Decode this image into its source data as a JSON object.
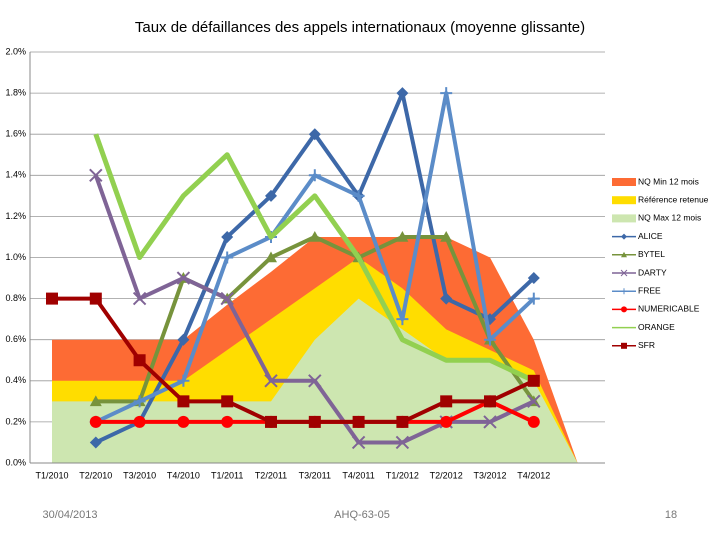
{
  "chart_data": {
    "type": "line",
    "title": "Taux de défaillances des appels internationaux (moyenne glissante)",
    "categories": [
      "T1/2010",
      "T2/2010",
      "T3/2010",
      "T4/2010",
      "T1/2011",
      "T2/2011",
      "T3/2011",
      "T4/2011",
      "T1/2012",
      "T2/2012",
      "T3/2012",
      "T4/2012",
      null
    ],
    "ylim": [
      0,
      2
    ],
    "yticks": [
      {
        "value": 0,
        "label": "0.0%"
      },
      {
        "value": 0.2,
        "label": "0.2%"
      },
      {
        "value": 0.4,
        "label": "0.4%"
      },
      {
        "value": 0.6,
        "label": "0.6%"
      },
      {
        "value": 0.8,
        "label": "0.8%"
      },
      {
        "value": 1.0,
        "label": "1.0%"
      },
      {
        "value": 1.2,
        "label": "1.2%"
      },
      {
        "value": 1.4,
        "label": "1.4%"
      },
      {
        "value": 1.6,
        "label": "1.6%"
      },
      {
        "value": 1.8,
        "label": "1.8%"
      },
      {
        "value": 2.0,
        "label": "2.0%"
      }
    ],
    "grid": true,
    "legend": "right",
    "series": [
      {
        "name": "NQ Min 12 mois",
        "type": "area",
        "color": "#fd6b34",
        "values": [
          0.6,
          0.6,
          0.6,
          0.6,
          0.77,
          0.93,
          1.1,
          1.1,
          1.1,
          1.1,
          1.0,
          0.6,
          0
        ]
      },
      {
        "name": "Référence retenue",
        "type": "area",
        "color": "#ffdd00",
        "values": [
          0.4,
          0.4,
          0.4,
          0.4,
          0.55,
          0.7,
          0.85,
          1.0,
          0.85,
          0.65,
          0.55,
          0.45,
          0
        ]
      },
      {
        "name": "NQ Max 12 mois",
        "type": "area",
        "color": "#cde6b0",
        "values": [
          0.3,
          0.3,
          0.3,
          0.3,
          0.3,
          0.3,
          0.6,
          0.8,
          0.65,
          0.5,
          0.5,
          0.4,
          0
        ]
      },
      {
        "name": "ALICE",
        "type": "line",
        "marker": "diamond",
        "color": "#3d68a8",
        "values": [
          null,
          0.1,
          0.2,
          0.6,
          1.1,
          1.3,
          1.6,
          1.3,
          1.8,
          0.8,
          0.7,
          0.9,
          null
        ]
      },
      {
        "name": "BYTEL",
        "type": "line",
        "marker": "triangle",
        "color": "#77933c",
        "values": [
          null,
          0.3,
          0.3,
          0.9,
          0.8,
          1.0,
          1.1,
          1.0,
          1.1,
          1.1,
          0.6,
          0.3,
          null
        ]
      },
      {
        "name": "DARTY",
        "type": "line",
        "marker": "x",
        "color": "#7f6496",
        "values": [
          null,
          1.4,
          0.8,
          0.9,
          0.8,
          0.4,
          0.4,
          0.1,
          0.1,
          0.2,
          0.2,
          0.3,
          null
        ]
      },
      {
        "name": "FREE",
        "type": "line",
        "marker": "plus",
        "color": "#5b8cc8",
        "values": [
          null,
          0.2,
          0.3,
          0.4,
          1.0,
          1.1,
          1.4,
          1.3,
          0.7,
          1.8,
          0.6,
          0.8,
          null
        ]
      },
      {
        "name": "NUMERICABLE",
        "type": "line",
        "marker": "circle",
        "color": "#ff0000",
        "values": [
          null,
          0.2,
          0.2,
          0.2,
          0.2,
          0.2,
          0.2,
          0.2,
          0.2,
          0.2,
          0.3,
          0.2,
          null
        ]
      },
      {
        "name": "ORANGE",
        "type": "line",
        "marker": "none",
        "color": "#92d050",
        "values": [
          null,
          1.6,
          1.0,
          1.3,
          1.5,
          1.1,
          1.3,
          1.0,
          0.6,
          0.5,
          0.5,
          0.4,
          null
        ]
      },
      {
        "name": "SFR",
        "type": "line",
        "marker": "square",
        "color": "#a00000",
        "values": [
          0.8,
          0.8,
          0.5,
          0.3,
          0.3,
          0.2,
          0.2,
          0.2,
          0.2,
          0.3,
          0.3,
          0.4,
          null
        ]
      }
    ]
  },
  "footer": {
    "date": "30/04/2013",
    "code": "AHQ-63-05",
    "page": "18"
  }
}
